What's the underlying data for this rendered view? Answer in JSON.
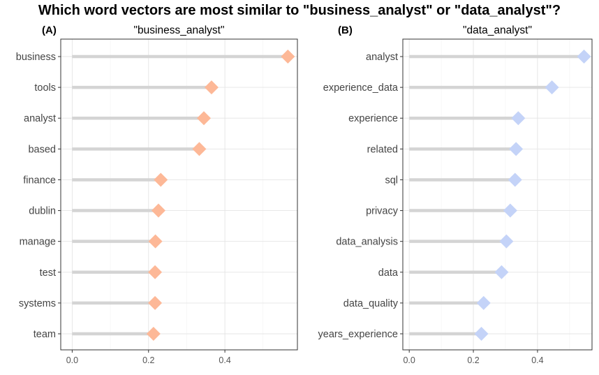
{
  "title": "Which word vectors are most similar to \"business_analyst\" or \"data_analyst\"?",
  "chart_data": [
    {
      "type": "lollipop",
      "tag": "(A)",
      "title": "\"business_analyst\"",
      "color": "#FDB897",
      "stick_color": "#D4D4D4",
      "xlim": [
        -0.03,
        0.59
      ],
      "xticks": [
        0.0,
        0.2,
        0.4
      ],
      "xtick_labels": [
        "0.0",
        "0.2",
        "0.4"
      ],
      "categories": [
        "business",
        "tools",
        "analyst",
        "based",
        "finance",
        "dublin",
        "manage",
        "test",
        "systems",
        "team"
      ],
      "values": [
        0.565,
        0.365,
        0.345,
        0.333,
        0.232,
        0.226,
        0.218,
        0.217,
        0.217,
        0.213
      ]
    },
    {
      "type": "lollipop",
      "tag": "(B)",
      "title": "\"data_analyst\"",
      "color": "#C4D3F8",
      "stick_color": "#D4D4D4",
      "xlim": [
        -0.02,
        0.57
      ],
      "xticks": [
        0.0,
        0.2,
        0.4
      ],
      "xtick_labels": [
        "0.0",
        "0.2",
        "0.4"
      ],
      "categories": [
        "analyst",
        "experience_data",
        "experience",
        "related",
        "sql",
        "privacy",
        "data_analysis",
        "data",
        "data_quality",
        "years_experience"
      ],
      "values": [
        0.545,
        0.445,
        0.34,
        0.333,
        0.33,
        0.315,
        0.303,
        0.288,
        0.232,
        0.225
      ]
    }
  ]
}
